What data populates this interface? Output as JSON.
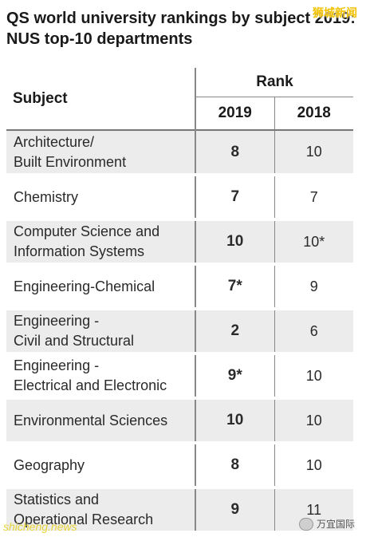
{
  "title": {
    "line1": "QS world university rankings by subject 2019:",
    "line2": "NUS top-10 departments"
  },
  "table": {
    "subject_header": "Subject",
    "rank_header": "Rank",
    "year_headers": [
      "2019",
      "2018"
    ],
    "rows": [
      {
        "subject_lines": [
          "Architecture/",
          "Built Environment"
        ],
        "rank_2019": "8",
        "rank_2018": "10"
      },
      {
        "subject_lines": [
          "Chemistry",
          ""
        ],
        "rank_2019": "7",
        "rank_2018": "7"
      },
      {
        "subject_lines": [
          "Computer Science and",
          "Information Systems"
        ],
        "rank_2019": "10",
        "rank_2018": "10*"
      },
      {
        "subject_lines": [
          "Engineering-Chemical",
          ""
        ],
        "rank_2019": "7*",
        "rank_2018": "9"
      },
      {
        "subject_lines": [
          "Engineering -",
          "Civil and Structural"
        ],
        "rank_2019": "2",
        "rank_2018": "6"
      },
      {
        "subject_lines": [
          "Engineering -",
          "Electrical and Electronic"
        ],
        "rank_2019": "9*",
        "rank_2018": "10"
      },
      {
        "subject_lines": [
          "Environmental Sciences",
          ""
        ],
        "rank_2019": "10",
        "rank_2018": "10"
      },
      {
        "subject_lines": [
          "Geography",
          ""
        ],
        "rank_2019": "8",
        "rank_2018": "10"
      },
      {
        "subject_lines": [
          "Statistics and",
          "Operational Research"
        ],
        "rank_2019": "9",
        "rank_2018": "11"
      }
    ]
  },
  "watermarks": {
    "top_right": "狮城新闻",
    "bottom_left": "shicheng.news",
    "bottom_right": "万宜国际"
  },
  "colors": {
    "shaded_row": "#ececec",
    "watermark_yellow": "#f2c200"
  }
}
